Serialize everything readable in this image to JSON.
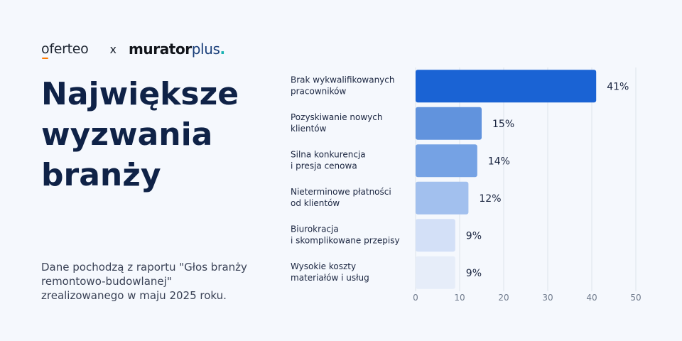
{
  "logos": {
    "brand1": "oferteo",
    "separator": "x",
    "brand2_part1": "murator",
    "brand2_part2": "plus",
    "brand2_dot": "."
  },
  "heading": {
    "lines": [
      "Największe",
      "wyzwania",
      "branży"
    ]
  },
  "source_note": {
    "lines": [
      "Dane pochodzą z raportu \"Głos branży",
      "remontowo-budowlanej\"",
      "zrealizowanego w maju 2025 roku."
    ]
  },
  "colors": {
    "accent_orange": "#ff7a00",
    "plus_color": "#1a3f7a",
    "dot_color": "#19b2b2"
  },
  "chart_data": {
    "type": "bar",
    "orientation": "horizontal",
    "categories": [
      [
        "Brak wykwalifikowanych",
        "pracowników"
      ],
      [
        "Pozyskiwanie nowych",
        "klientów"
      ],
      [
        "Silna konkurencja",
        "i presja cenowa"
      ],
      [
        "Nieterminowe płatności",
        "od klientów"
      ],
      [
        "Biurokracja",
        "i skomplikowane przepisy"
      ],
      [
        "Wysokie koszty",
        "materiałów i usług"
      ]
    ],
    "values": [
      41,
      15,
      14,
      12,
      9,
      9
    ],
    "value_labels": [
      "41%",
      "15%",
      "14%",
      "12%",
      "9%",
      "9%"
    ],
    "bar_colors": [
      "#1a63d4",
      "#6193dd",
      "#75a2e4",
      "#a2c0ee",
      "#d3e0f7",
      "#e6edf9"
    ],
    "xlim": [
      0,
      50
    ],
    "xticks": [
      0,
      10,
      20,
      30,
      40,
      50
    ],
    "grid": true,
    "legend": "none"
  }
}
